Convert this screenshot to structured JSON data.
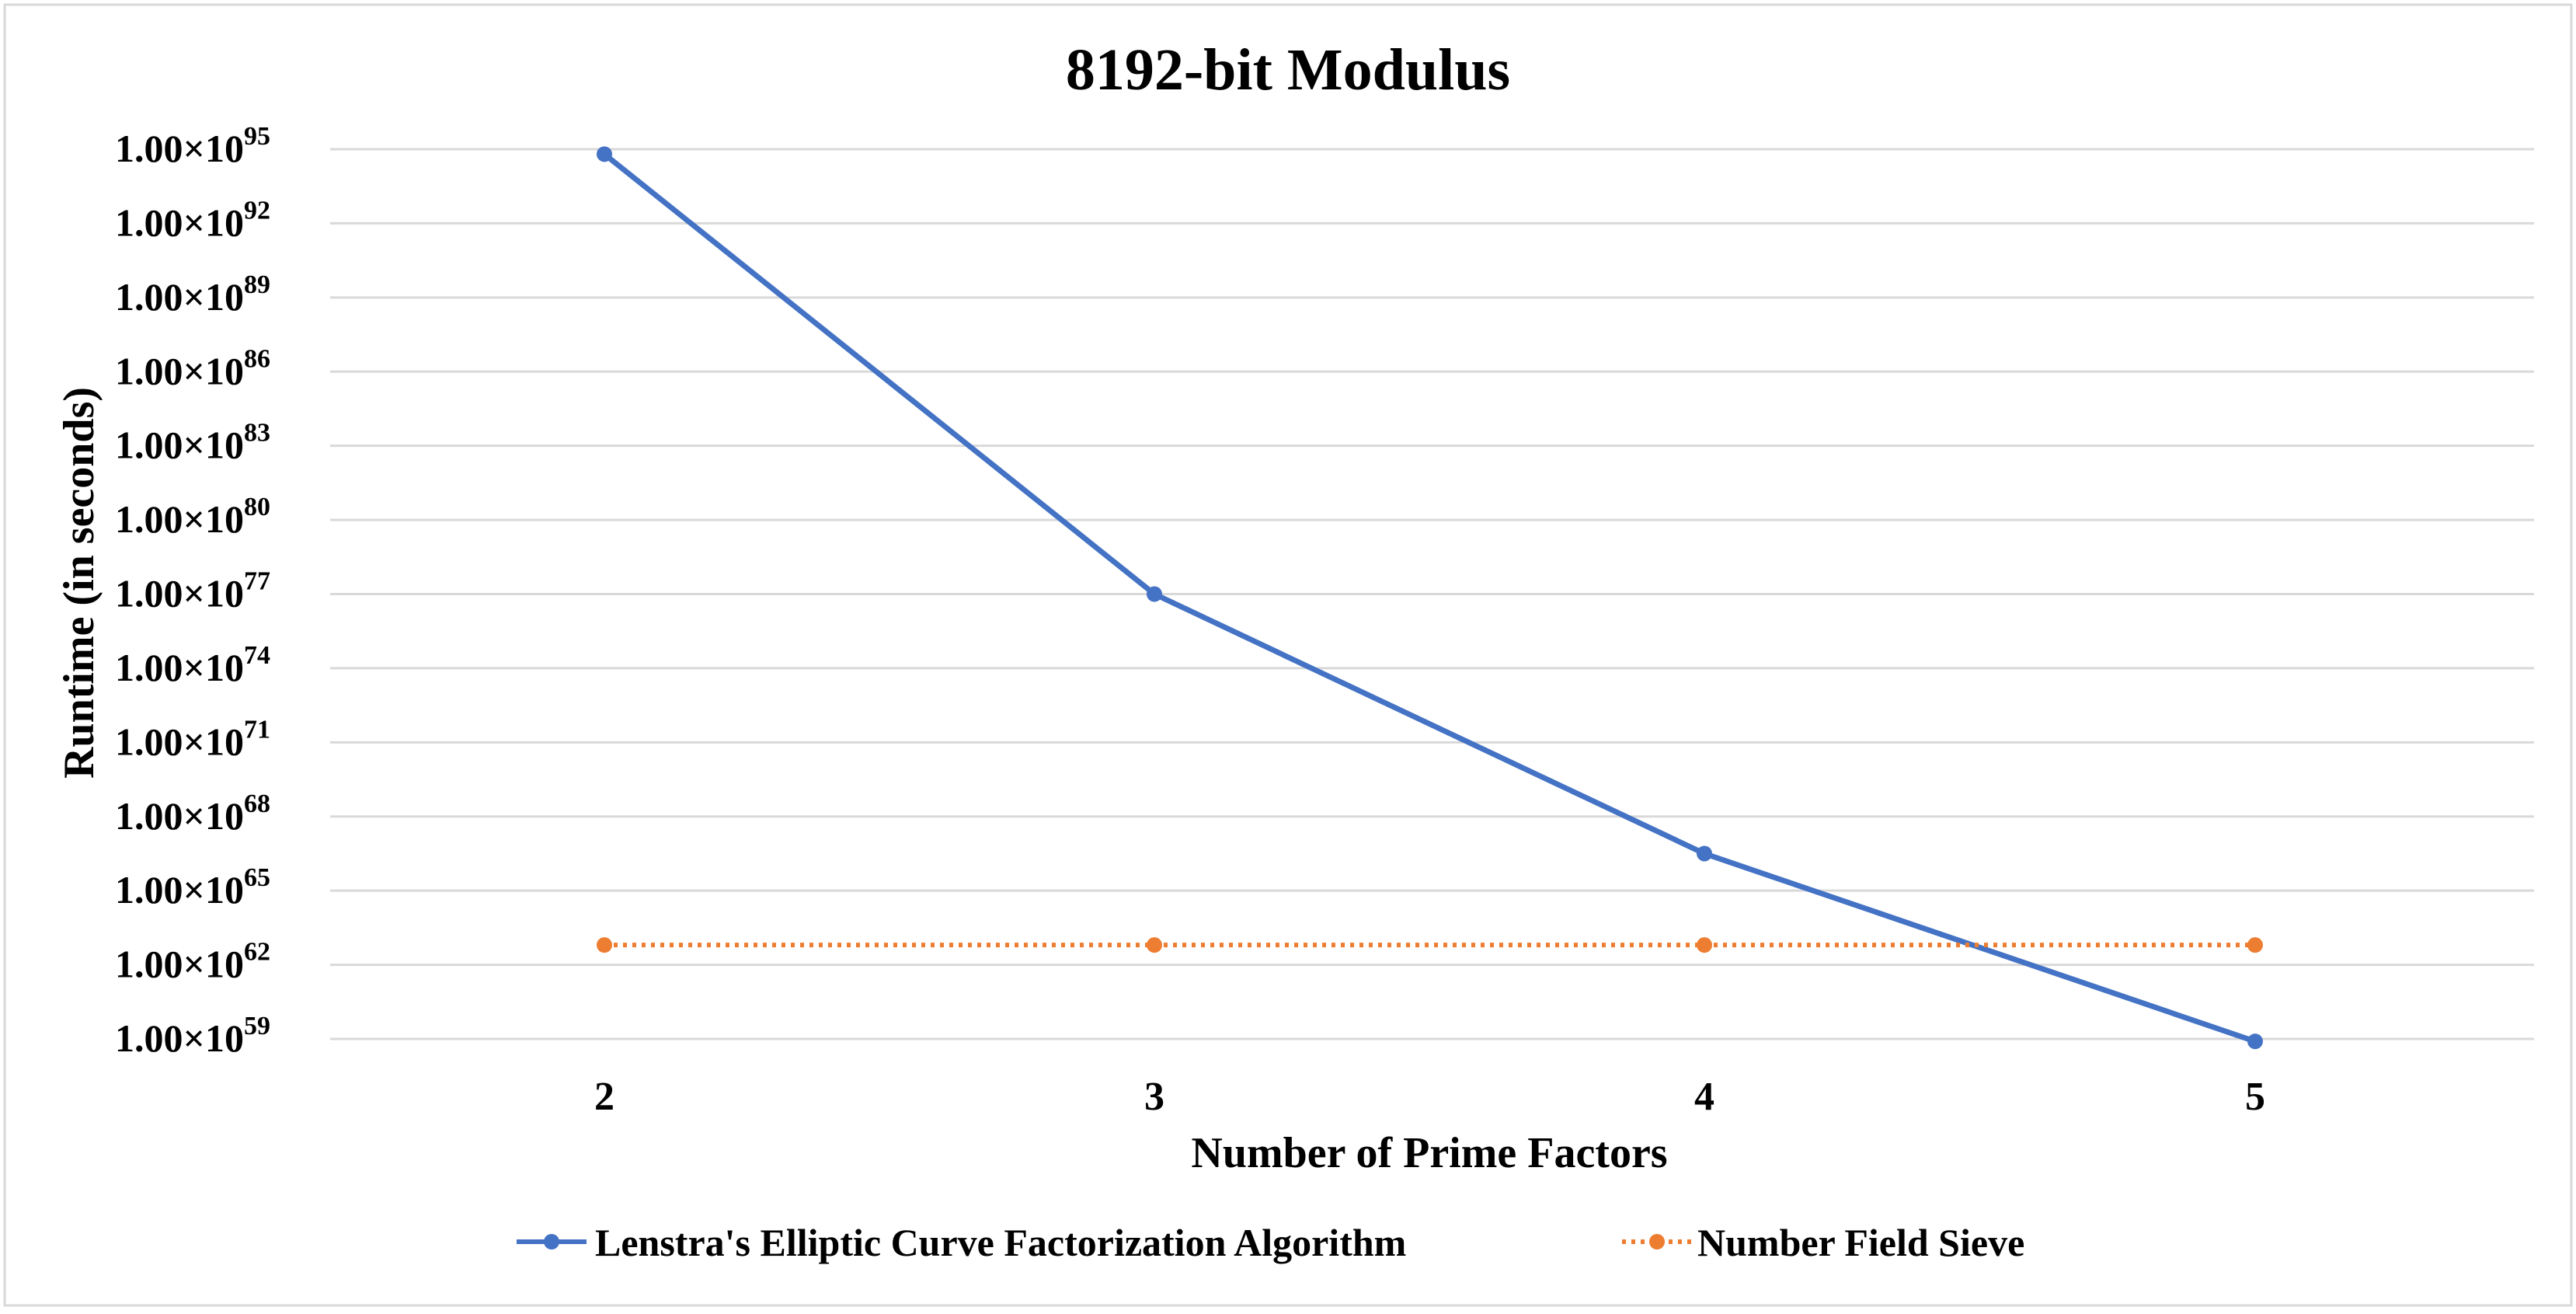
{
  "chart_data": {
    "type": "line",
    "title": "8192-bit Modulus",
    "xlabel": "Number of Prime Factors",
    "ylabel": "Runtime (in seconds)",
    "scale": "log10",
    "categories": [
      "2",
      "3",
      "4",
      "5"
    ],
    "y_exponent_range": [
      57,
      96
    ],
    "y_ticks": [
      {
        "exp": 59,
        "base": "1.00×10",
        "sup": "59"
      },
      {
        "exp": 62,
        "base": "1.00×10",
        "sup": "62"
      },
      {
        "exp": 65,
        "base": "1.00×10",
        "sup": "65"
      },
      {
        "exp": 68,
        "base": "1.00×10",
        "sup": "68"
      },
      {
        "exp": 71,
        "base": "1.00×10",
        "sup": "71"
      },
      {
        "exp": 74,
        "base": "1.00×10",
        "sup": "74"
      },
      {
        "exp": 77,
        "base": "1.00×10",
        "sup": "77"
      },
      {
        "exp": 80,
        "base": "1.00×10",
        "sup": "80"
      },
      {
        "exp": 83,
        "base": "1.00×10",
        "sup": "83"
      },
      {
        "exp": 86,
        "base": "1.00×10",
        "sup": "86"
      },
      {
        "exp": 89,
        "base": "1.00×10",
        "sup": "89"
      },
      {
        "exp": 92,
        "base": "1.00×10",
        "sup": "92"
      },
      {
        "exp": 95,
        "base": "1.00×10",
        "sup": "95"
      }
    ],
    "series": [
      {
        "name": "Lenstra's Elliptic Curve Factorization Algorithm",
        "color": "#4472C4",
        "style": "solid",
        "log10_values": [
          94.8,
          77.0,
          66.5,
          58.9
        ]
      },
      {
        "name": "Number Field Sieve",
        "color": "#ED7D31",
        "style": "dotted",
        "log10_values": [
          62.8,
          62.8,
          62.8,
          62.8
        ]
      }
    ],
    "grid": true,
    "legend": "bottom-center"
  }
}
